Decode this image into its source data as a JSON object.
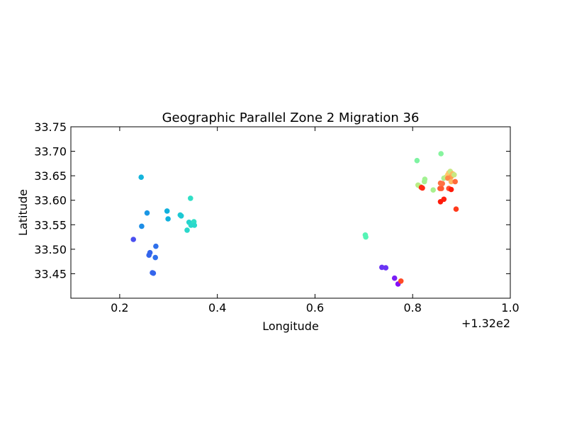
{
  "chart_data": {
    "type": "scatter",
    "title": "Geographic Parallel Zone 2 Migration 36",
    "xlabel": "Longitude",
    "ylabel": "Latitude",
    "xlim": [
      132.1,
      133.0
    ],
    "ylim": [
      33.4,
      33.75
    ],
    "x_offset_label": "+1.32e2",
    "x_ticks": [
      {
        "value": 132.2,
        "label": "0.2"
      },
      {
        "value": 132.4,
        "label": "0.4"
      },
      {
        "value": 132.6,
        "label": "0.6"
      },
      {
        "value": 132.8,
        "label": "0.8"
      },
      {
        "value": 133.0,
        "label": "1.0"
      }
    ],
    "y_ticks": [
      {
        "value": 33.45,
        "label": "33.45"
      },
      {
        "value": 33.5,
        "label": "33.50"
      },
      {
        "value": 33.55,
        "label": "33.55"
      },
      {
        "value": 33.6,
        "label": "33.60"
      },
      {
        "value": 33.65,
        "label": "33.65"
      },
      {
        "value": 33.7,
        "label": "33.70"
      },
      {
        "value": 33.75,
        "label": "33.75"
      }
    ],
    "grid": false,
    "legend": "none",
    "colormap": "rainbow",
    "points": [
      {
        "x": 132.228,
        "y": 33.52,
        "color": "#4a4ff0"
      },
      {
        "x": 132.26,
        "y": 33.488,
        "color": "#3465ec"
      },
      {
        "x": 132.262,
        "y": 33.493,
        "color": "#3465ec"
      },
      {
        "x": 132.273,
        "y": 33.483,
        "color": "#2f70eb"
      },
      {
        "x": 132.274,
        "y": 33.506,
        "color": "#2f70eb"
      },
      {
        "x": 132.267,
        "y": 33.452,
        "color": "#3465ec"
      },
      {
        "x": 132.269,
        "y": 33.451,
        "color": "#3465ec"
      },
      {
        "x": 132.245,
        "y": 33.547,
        "color": "#1e8ee6"
      },
      {
        "x": 132.256,
        "y": 33.574,
        "color": "#1a96e4"
      },
      {
        "x": 132.244,
        "y": 33.647,
        "color": "#14b4dc"
      },
      {
        "x": 132.297,
        "y": 33.578,
        "color": "#10b0dd"
      },
      {
        "x": 132.299,
        "y": 33.562,
        "color": "#10b0dd"
      },
      {
        "x": 132.324,
        "y": 33.57,
        "color": "#1cc9d3"
      },
      {
        "x": 132.326,
        "y": 33.568,
        "color": "#1cc9d3"
      },
      {
        "x": 132.338,
        "y": 33.539,
        "color": "#2ad8cb"
      },
      {
        "x": 132.342,
        "y": 33.555,
        "color": "#24d4ce"
      },
      {
        "x": 132.346,
        "y": 33.549,
        "color": "#2ad8cb"
      },
      {
        "x": 132.352,
        "y": 33.556,
        "color": "#30dfc6"
      },
      {
        "x": 132.353,
        "y": 33.549,
        "color": "#2ad8cb"
      },
      {
        "x": 132.345,
        "y": 33.604,
        "color": "#30dfc6"
      },
      {
        "x": 132.703,
        "y": 33.529,
        "color": "#56f4b6"
      },
      {
        "x": 132.704,
        "y": 33.525,
        "color": "#56f4b6"
      },
      {
        "x": 132.737,
        "y": 33.463,
        "color": "#6a34f4"
      },
      {
        "x": 132.745,
        "y": 33.462,
        "color": "#6a34f4"
      },
      {
        "x": 132.763,
        "y": 33.441,
        "color": "#7a1ff6"
      },
      {
        "x": 132.77,
        "y": 33.429,
        "color": "#8410f8"
      },
      {
        "x": 132.776,
        "y": 33.435,
        "color": "#ff4a26"
      },
      {
        "x": 132.809,
        "y": 33.681,
        "color": "#7ef3a2"
      },
      {
        "x": 132.858,
        "y": 33.695,
        "color": "#86f49e"
      },
      {
        "x": 132.811,
        "y": 33.631,
        "color": "#b8ee86"
      },
      {
        "x": 132.816,
        "y": 33.628,
        "color": "#c2ea80"
      },
      {
        "x": 132.824,
        "y": 33.638,
        "color": "#a8f08e"
      },
      {
        "x": 132.825,
        "y": 33.643,
        "color": "#a2f292"
      },
      {
        "x": 132.842,
        "y": 33.621,
        "color": "#a8f08e"
      },
      {
        "x": 132.818,
        "y": 33.626,
        "color": "#ff2a14"
      },
      {
        "x": 132.82,
        "y": 33.625,
        "color": "#ff2a14"
      },
      {
        "x": 132.857,
        "y": 33.635,
        "color": "#ff7042"
      },
      {
        "x": 132.859,
        "y": 33.624,
        "color": "#ff5a30"
      },
      {
        "x": 132.856,
        "y": 33.624,
        "color": "#ff5a30"
      },
      {
        "x": 132.861,
        "y": 33.634,
        "color": "#ff7042"
      },
      {
        "x": 132.864,
        "y": 33.645,
        "color": "#a8f08e"
      },
      {
        "x": 132.868,
        "y": 33.647,
        "color": "#c8e882"
      },
      {
        "x": 132.872,
        "y": 33.652,
        "color": "#fecf68"
      },
      {
        "x": 132.874,
        "y": 33.656,
        "color": "#fec46a"
      },
      {
        "x": 132.877,
        "y": 33.659,
        "color": "#c8e882"
      },
      {
        "x": 132.879,
        "y": 33.648,
        "color": "#ffa050"
      },
      {
        "x": 132.882,
        "y": 33.654,
        "color": "#ffb862"
      },
      {
        "x": 132.885,
        "y": 33.652,
        "color": "#c8e882"
      },
      {
        "x": 132.872,
        "y": 33.645,
        "color": "#ff8a48"
      },
      {
        "x": 132.879,
        "y": 33.638,
        "color": "#ffb862"
      },
      {
        "x": 132.887,
        "y": 33.638,
        "color": "#ff6a3a"
      },
      {
        "x": 132.874,
        "y": 33.624,
        "color": "#ff5030"
      },
      {
        "x": 132.879,
        "y": 33.622,
        "color": "#ff1a0a"
      },
      {
        "x": 132.864,
        "y": 33.602,
        "color": "#ff2010"
      },
      {
        "x": 132.857,
        "y": 33.597,
        "color": "#ff1a0a"
      },
      {
        "x": 132.889,
        "y": 33.582,
        "color": "#ff3a1c"
      }
    ]
  }
}
